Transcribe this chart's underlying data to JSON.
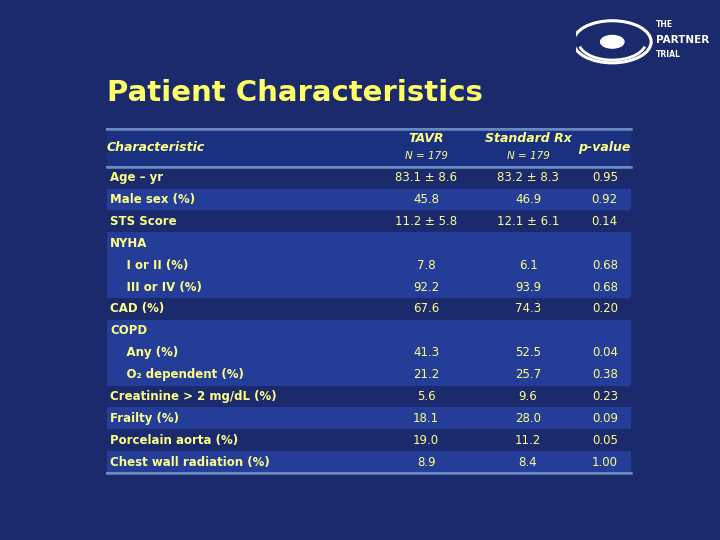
{
  "title": "Patient Characteristics",
  "title_color": "#FFFF66",
  "bg_color": "#1a2a6c",
  "header_bg": "#1a3080",
  "table_bg": "#1a2a6c",
  "alt_row_bg": "#243d99",
  "border_color": "#6a8abf",
  "text_color": "#FFFF88",
  "header_text_color": "#FFFF88",
  "col_headers": [
    "Characteristic",
    "TAVR\nN = 179",
    "Standard Rx\nN = 179",
    "p-value"
  ],
  "rows": [
    {
      "label": "Age – yr",
      "indent": 0,
      "tavr": "83.1 ± 8.6",
      "std": "83.2 ± 8.3",
      "pval": "0.95",
      "highlight": false
    },
    {
      "label": "Male sex (%)",
      "indent": 0,
      "tavr": "45.8",
      "std": "46.9",
      "pval": "0.92",
      "highlight": true
    },
    {
      "label": "STS Score",
      "indent": 0,
      "tavr": "11.2 ± 5.8",
      "std": "12.1 ± 6.1",
      "pval": "0.14",
      "highlight": false
    },
    {
      "label": "NYHA",
      "indent": 0,
      "tavr": "",
      "std": "",
      "pval": "",
      "highlight": true
    },
    {
      "label": "    I or II (%)",
      "indent": 1,
      "tavr": "7.8",
      "std": "6.1",
      "pval": "0.68",
      "highlight": true
    },
    {
      "label": "    III or IV (%)",
      "indent": 1,
      "tavr": "92.2",
      "std": "93.9",
      "pval": "0.68",
      "highlight": true
    },
    {
      "label": "CAD (%)",
      "indent": 0,
      "tavr": "67.6",
      "std": "74.3",
      "pval": "0.20",
      "highlight": false
    },
    {
      "label": "COPD",
      "indent": 0,
      "tavr": "",
      "std": "",
      "pval": "",
      "highlight": true
    },
    {
      "label": "    Any (%)",
      "indent": 1,
      "tavr": "41.3",
      "std": "52.5",
      "pval": "0.04",
      "highlight": true
    },
    {
      "label": "    O₂ dependent (%)",
      "indent": 1,
      "tavr": "21.2",
      "std": "25.7",
      "pval": "0.38",
      "highlight": true
    },
    {
      "label": "Creatinine > 2 mg/dL (%)",
      "indent": 0,
      "tavr": "5.6",
      "std": "9.6",
      "pval": "0.23",
      "highlight": false
    },
    {
      "label": "Frailty (%)",
      "indent": 0,
      "tavr": "18.1",
      "std": "28.0",
      "pval": "0.09",
      "highlight": true
    },
    {
      "label": "Porcelain aorta (%)",
      "indent": 0,
      "tavr": "19.0",
      "std": "11.2",
      "pval": "0.05",
      "highlight": false
    },
    {
      "label": "Chest wall radiation (%)",
      "indent": 0,
      "tavr": "8.9",
      "std": "8.4",
      "pval": "1.00",
      "highlight": true
    }
  ]
}
